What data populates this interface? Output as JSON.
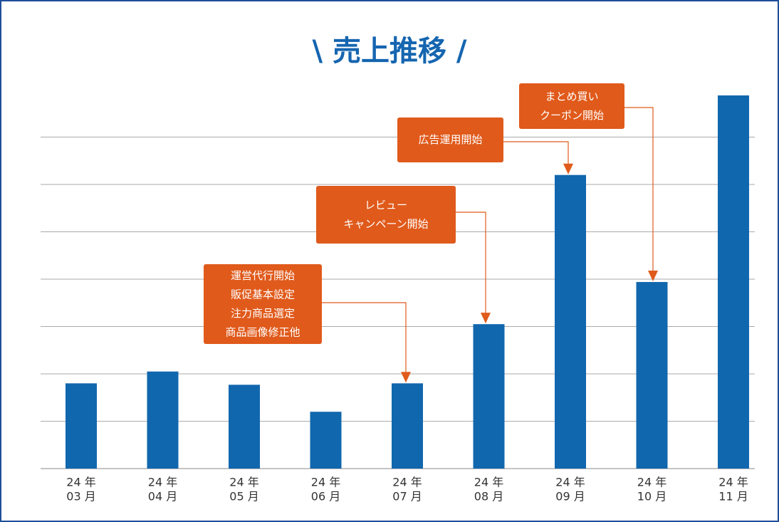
{
  "chart_data": {
    "type": "bar",
    "title": "\\ 売上推移 /",
    "categories": [
      [
        "24 年",
        "03 月"
      ],
      [
        "24 年",
        "04 月"
      ],
      [
        "24 年",
        "05 月"
      ],
      [
        "24 年",
        "06 月"
      ],
      [
        "24 年",
        "07 月"
      ],
      [
        "24 年",
        "08 月"
      ],
      [
        "24 年",
        "09 月"
      ],
      [
        "24 年",
        "10 月"
      ],
      [
        "24 年",
        "11 月"
      ]
    ],
    "values": [
      1.8,
      2.05,
      1.77,
      1.2,
      1.8,
      3.05,
      6.2,
      3.94,
      7.88
    ],
    "color": "#1167ae",
    "ylim": [
      0,
      8
    ],
    "yticks": [
      0,
      1,
      2,
      3,
      4,
      5,
      6,
      7
    ],
    "grid": true,
    "annotations": [
      {
        "lines": [
          "運営代行開始",
          "販促基本設定",
          "注力商品選定",
          "商品画像修正他"
        ]
      },
      {
        "lines": [
          "レビュー",
          "キャンペーン開始"
        ]
      },
      {
        "lines": [
          "広告運用開始"
        ]
      },
      {
        "lines": [
          "まとめ買い",
          "クーポン開始"
        ]
      }
    ]
  }
}
